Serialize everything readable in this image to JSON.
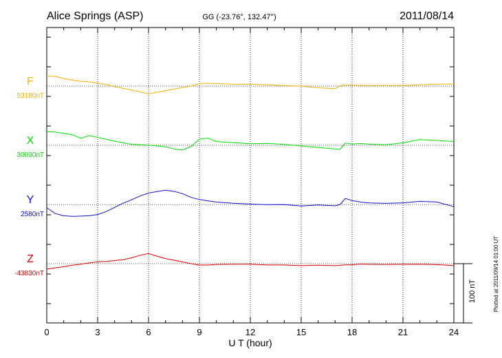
{
  "header": {
    "station": "Alice Springs (ASP)",
    "coords": "GG (-23.76°, 132.47°)",
    "date": "2011/08/14"
  },
  "footer_note": "Plotted at 2011/09/14 01:00 UT",
  "scale_label": "100 nT",
  "chart_data": {
    "type": "line",
    "xlabel": "U T (hour)",
    "xlim": [
      0,
      24
    ],
    "xticks": [
      "0",
      "3",
      "6",
      "9",
      "12",
      "15",
      "18",
      "21",
      "24"
    ],
    "grid": true,
    "series": [
      {
        "name": "F",
        "baseline": "53180nT",
        "color": "#f5b000",
        "x": [
          0,
          0.5,
          1,
          1.5,
          2,
          2.5,
          3,
          3.5,
          4,
          4.5,
          5,
          5.5,
          6,
          6.5,
          7,
          7.5,
          8,
          8.5,
          9,
          9.5,
          10,
          11,
          12,
          13,
          14,
          15,
          16,
          17,
          17.3,
          17.6,
          18,
          18.5,
          19,
          20,
          21,
          22,
          23,
          24
        ],
        "values": [
          17,
          16,
          13,
          10,
          8,
          7,
          5,
          3,
          -1,
          -4,
          -7,
          -10,
          -13,
          -11,
          -8,
          -5,
          -3,
          0,
          4,
          5,
          4,
          3,
          3,
          2,
          1,
          0,
          -3,
          -4,
          1,
          2,
          1,
          1,
          1,
          1,
          1,
          2,
          3,
          3
        ]
      },
      {
        "name": "X",
        "baseline": "30030nT",
        "color": "#00e000",
        "x": [
          0,
          0.5,
          1,
          1.5,
          2,
          2.5,
          3,
          3.5,
          4,
          4.5,
          5,
          5.5,
          6,
          6.5,
          7,
          7.5,
          8,
          8.5,
          9,
          9.5,
          10,
          11,
          12,
          13,
          14,
          15,
          16,
          17,
          17.3,
          17.6,
          18,
          18.5,
          19,
          20,
          21,
          22,
          23,
          24
        ],
        "values": [
          23,
          22,
          20,
          18,
          12,
          16,
          13,
          10,
          7,
          4,
          2,
          1,
          0,
          -1,
          -3,
          -6,
          -8,
          -2,
          10,
          12,
          6,
          4,
          3,
          3,
          1,
          -1,
          -4,
          -6,
          -7,
          4,
          2,
          3,
          2,
          1,
          4,
          10,
          8,
          6
        ]
      },
      {
        "name": "Y",
        "baseline": "2580nT",
        "color": "#1010d0",
        "x": [
          0,
          0.5,
          1,
          1.5,
          2,
          2.5,
          3,
          3.5,
          4,
          4.5,
          5,
          5.5,
          6,
          6.5,
          7,
          7.5,
          8,
          8.5,
          9,
          9.5,
          10,
          11,
          12,
          13,
          14,
          15,
          16,
          17,
          17.3,
          17.6,
          18,
          18.5,
          19,
          20,
          21,
          22,
          23,
          24
        ],
        "values": [
          -5,
          -15,
          -19,
          -20,
          -20,
          -19,
          -17,
          -12,
          -5,
          2,
          8,
          14,
          19,
          22,
          24,
          22,
          18,
          12,
          8,
          6,
          4,
          2,
          1,
          0,
          0,
          -3,
          -1,
          -2,
          0,
          10,
          7,
          4,
          3,
          2,
          3,
          5,
          4,
          -4
        ]
      },
      {
        "name": "Z",
        "baseline": "-43830nT",
        "color": "#e00000",
        "x": [
          0,
          0.5,
          1,
          1.5,
          2,
          2.5,
          3,
          3.5,
          4,
          4.5,
          5,
          5.5,
          6,
          6.5,
          7,
          7.5,
          8,
          8.5,
          9,
          9.5,
          10,
          11,
          12,
          13,
          14,
          15,
          16,
          17,
          17.3,
          17.6,
          18,
          18.5,
          19,
          20,
          21,
          22,
          23,
          24
        ],
        "values": [
          -9,
          -7,
          -5,
          -3,
          -1,
          1,
          3,
          4,
          5,
          7,
          10,
          14,
          17,
          13,
          9,
          6,
          3,
          0,
          -2,
          -2,
          -1,
          -1,
          -1,
          -2,
          -2,
          -3,
          -3,
          -3,
          -3,
          -2,
          -2,
          -1,
          -1,
          -1,
          -1,
          -1,
          -2,
          -3
        ]
      }
    ]
  }
}
